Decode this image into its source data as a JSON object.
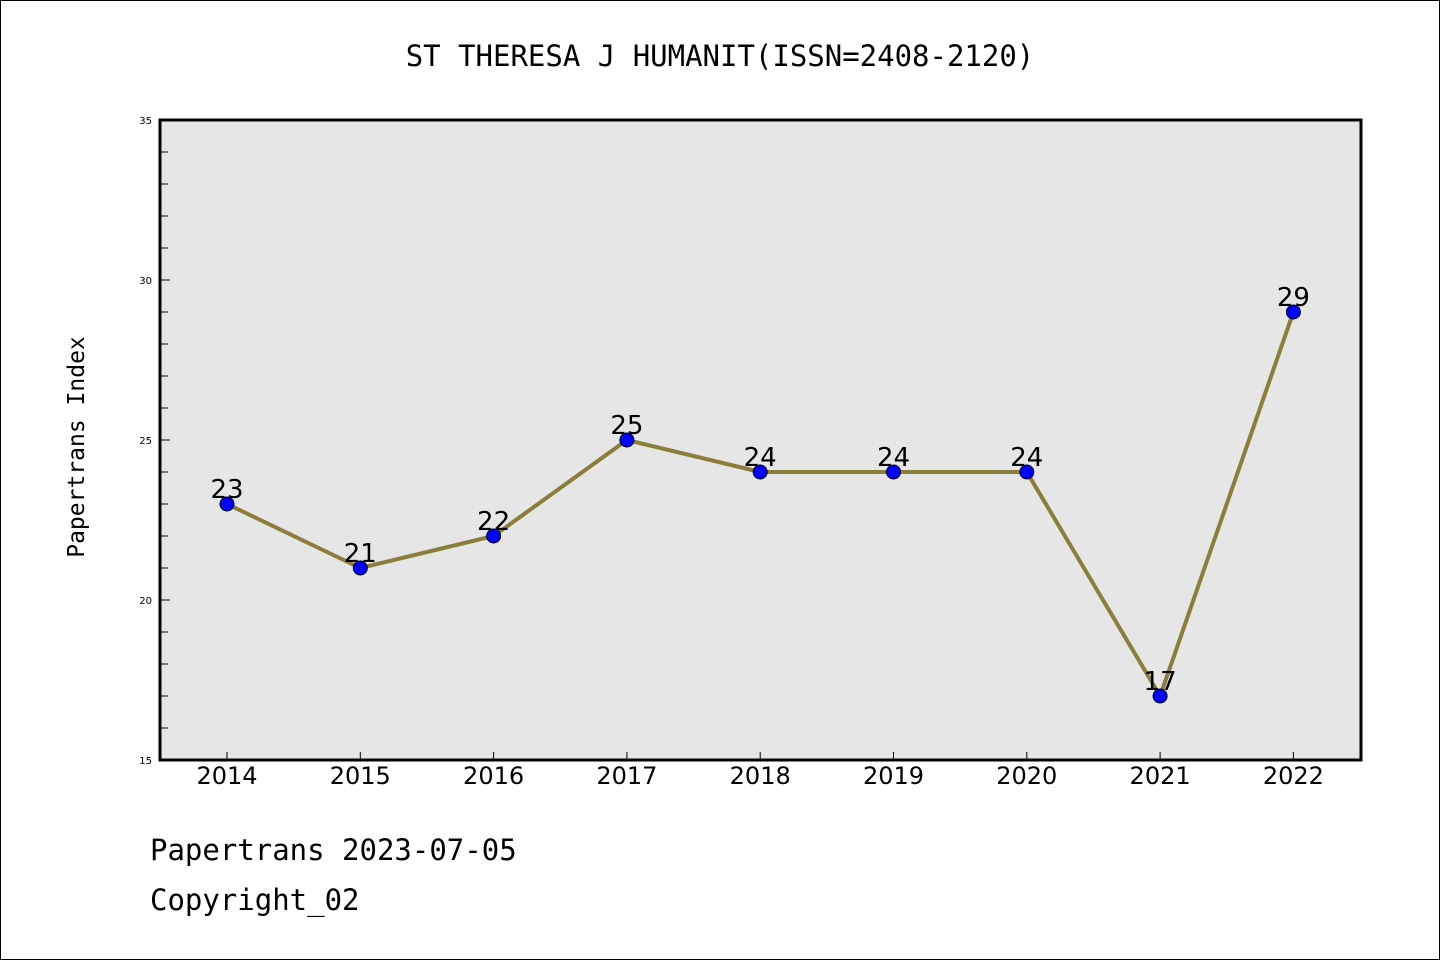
{
  "chart_data": {
    "type": "line",
    "title": "ST THERESA J HUMANIT(ISSN=2408-2120)",
    "xlabel": "",
    "ylabel": "Papertrans Index",
    "categories": [
      "2014",
      "2015",
      "2016",
      "2017",
      "2018",
      "2019",
      "2020",
      "2021",
      "2022"
    ],
    "series": [
      {
        "values": [
          23,
          21,
          22,
          25,
          24,
          24,
          24,
          17,
          29
        ]
      }
    ],
    "data_labels": [
      "23",
      "21",
      "22",
      "25",
      "24",
      "24",
      "24",
      "17",
      "29"
    ],
    "ylim": [
      15,
      35
    ],
    "yticks": [
      "15",
      "20",
      "25",
      "30",
      "35"
    ],
    "grid": false,
    "colors": {
      "line": "#8b7d3a",
      "marker": "#0000ff",
      "plot_background": "#e6e6e6"
    }
  },
  "footer": {
    "line1": "Papertrans 2023-07-05",
    "line2": "Copyright_02"
  }
}
